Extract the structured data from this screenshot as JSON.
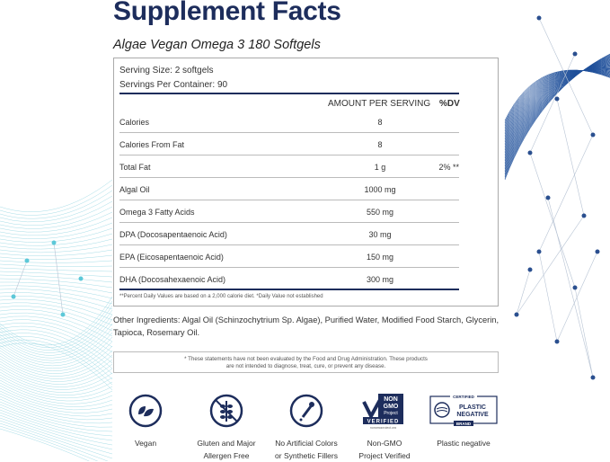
{
  "title": "Supplement Facts",
  "subtitle": "Algae Vegan Omega 3  180 Softgels",
  "serving_size": "Serving Size: 2 softgels",
  "servings_per_container": "Servings Per Container: 90",
  "headers": {
    "amount": "AMOUNT PER SERVING",
    "dv": "%DV"
  },
  "rows": [
    {
      "name": "Calories",
      "amount": "8",
      "dv": ""
    },
    {
      "name": "Calories From Fat",
      "amount": "8",
      "dv": ""
    },
    {
      "name": "Total Fat",
      "amount": "1 g",
      "dv": "2% **"
    },
    {
      "name": "Algal Oil",
      "amount": "1000 mg",
      "dv": ""
    },
    {
      "name": "Omega 3 Fatty Acids",
      "amount": "550 mg",
      "dv": ""
    },
    {
      "name": "DPA (Docosapentaenoic Acid)",
      "amount": "30 mg",
      "dv": ""
    },
    {
      "name": "EPA (Eicosapentaenoic Acid)",
      "amount": "150 mg",
      "dv": ""
    },
    {
      "name": "DHA (Docosahexaenoic Acid)",
      "amount": "300 mg",
      "dv": ""
    }
  ],
  "footnote": "**Percent Daily Values are based on a 2,000 calorie diet. *Daily Value not established",
  "other_ingredients": "Other Ingredients: Algal Oil (Schinzochytrium Sp. Algae), Purified Water, Modified Food Starch, Glycerin, Tapioca, Rosemary Oil.",
  "disclaimer_1": "* These statements have not been evaluated by the Food and Drug Administration. These products",
  "disclaimer_2": "are not intended to diagnose, treat, cure, or prevent any disease.",
  "badges": [
    {
      "icon": "leaf-icon",
      "label1": "Vegan",
      "label2": ""
    },
    {
      "icon": "no-wheat-icon",
      "label1": "Gluten and Major",
      "label2": "Allergen Free"
    },
    {
      "icon": "dropper-icon",
      "label1": "No Artificial Colors",
      "label2": "or Synthetic Fillers"
    },
    {
      "icon": "non-gmo-logo",
      "label1": "Non-GMO",
      "label2": "Project Verified",
      "logo_text": [
        "NON",
        "GMO",
        "Project",
        "VERIFIED",
        "nongmoproject.org"
      ]
    },
    {
      "icon": "plastic-negative-logo",
      "label1": "Plastic negative",
      "label2": "",
      "logo_text": [
        "CERTIFIED",
        "PLASTIC",
        "NEGATIVE",
        "BRAND"
      ]
    }
  ],
  "colors": {
    "navy": "#1d2d5c",
    "teal": "#5cc8d8",
    "blue": "#1e5aa8"
  }
}
